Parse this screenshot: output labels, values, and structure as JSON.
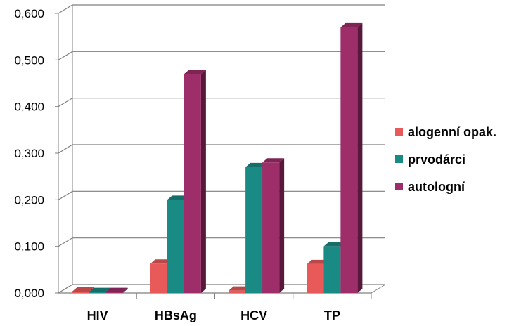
{
  "chart_data": {
    "type": "bar",
    "title": "",
    "xlabel": "",
    "ylabel": "",
    "categories": [
      "HIV",
      "HBsAg",
      "HCV",
      "TP"
    ],
    "series": [
      {
        "name": "alogenní opak.",
        "values": [
          0.003,
          0.063,
          0.005,
          0.062
        ],
        "color": "#e85a5a"
      },
      {
        "name": "prvodárci",
        "values": [
          0.002,
          0.2,
          0.27,
          0.1
        ],
        "color": "#1a8a84"
      },
      {
        "name": "autologní",
        "values": [
          0.002,
          0.47,
          0.28,
          0.57
        ],
        "color": "#9e2e6a"
      }
    ],
    "ylim": [
      0,
      0.6
    ],
    "yticks": [
      "0,000",
      "0,100",
      "0,200",
      "0,300",
      "0,400",
      "0,500",
      "0,600"
    ],
    "grid": true,
    "legend_position": "right",
    "style": "3d-clustered-column"
  }
}
